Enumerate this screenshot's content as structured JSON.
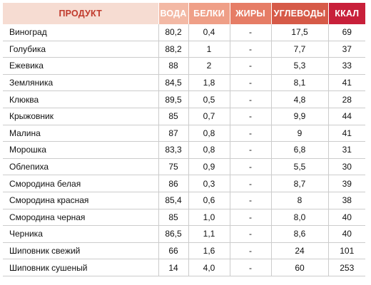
{
  "headers": [
    "ПРОДУКТ",
    "ВОДА",
    "БЕЛКИ",
    "ЖИРЫ",
    "УГЛЕВОДЫ",
    "ККАЛ"
  ],
  "header_colors": [
    "#f6dcd2",
    "#f3b9a5",
    "#ef9f87",
    "#e67d66",
    "#d65a48",
    "#c8203a"
  ],
  "rows": [
    [
      "Виноград",
      "80,2",
      "0,4",
      "-",
      "17,5",
      "69"
    ],
    [
      "Голубика",
      "88,2",
      "1",
      "-",
      "7,7",
      "37"
    ],
    [
      "Ежевика",
      "88",
      "2",
      "-",
      "5,3",
      "33"
    ],
    [
      "Земляника",
      "84,5",
      "1,8",
      "-",
      "8,1",
      "41"
    ],
    [
      "Клюква",
      "89,5",
      "0,5",
      "-",
      "4,8",
      "28"
    ],
    [
      "Крыжовник",
      "85",
      "0,7",
      "-",
      "9,9",
      "44"
    ],
    [
      "Малина",
      "87",
      "0,8",
      "-",
      "9",
      "41"
    ],
    [
      "Морошка",
      "83,3",
      "0,8",
      "-",
      "6,8",
      "31"
    ],
    [
      "Облепиха",
      "75",
      "0,9",
      "-",
      "5,5",
      "30"
    ],
    [
      "Смородина белая",
      "86",
      "0,3",
      "-",
      "8,7",
      "39"
    ],
    [
      "Смородина красная",
      "85,4",
      "0,6",
      "-",
      "8",
      "38"
    ],
    [
      "Смородина черная",
      "85",
      "1,0",
      "-",
      "8,0",
      "40"
    ],
    [
      "Черника",
      "86,5",
      "1,1",
      "-",
      "8,6",
      "40"
    ],
    [
      "Шиповник свежий",
      "66",
      "1,6",
      "-",
      "24",
      "101"
    ],
    [
      "Шиповник сушеный",
      "14",
      "4,0",
      "-",
      "60",
      "253"
    ]
  ]
}
